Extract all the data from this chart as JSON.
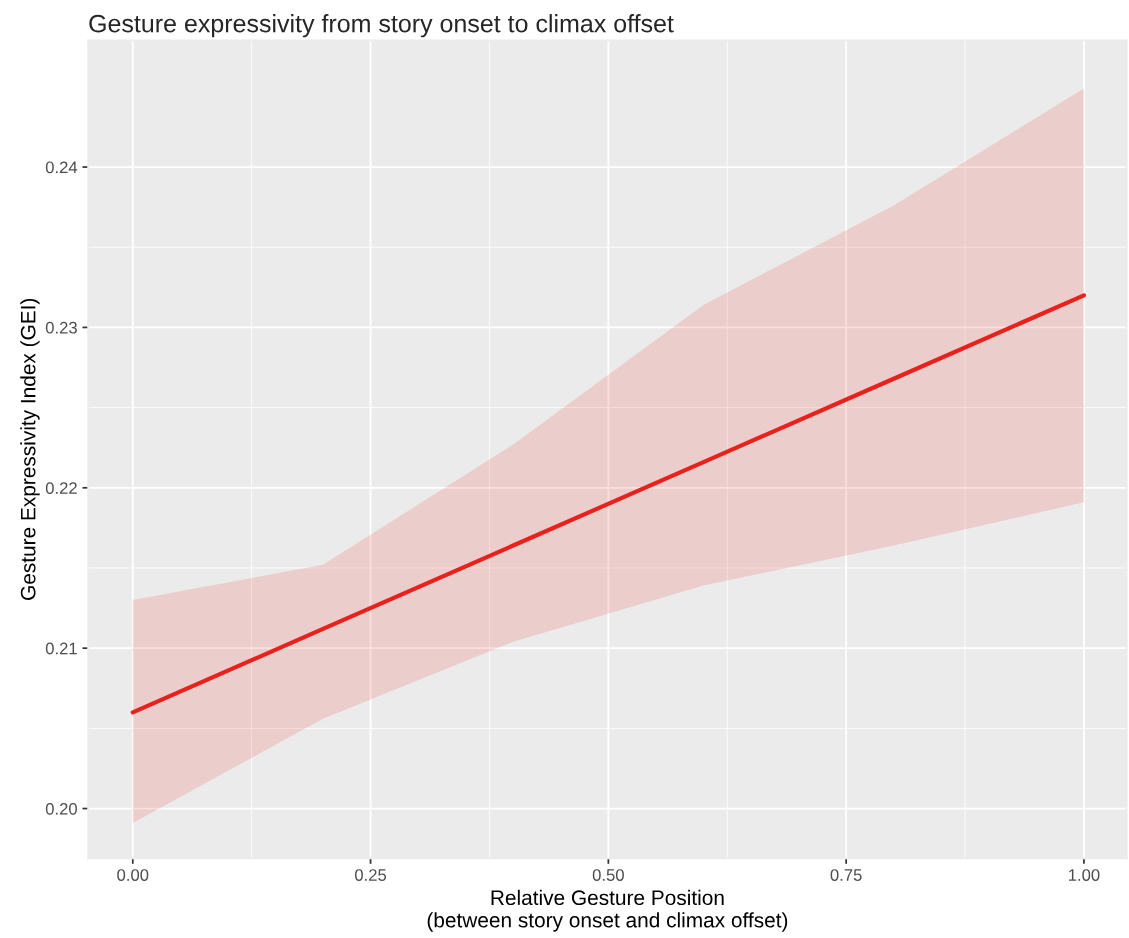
{
  "chart_data": {
    "type": "line",
    "title": "Gesture expressivity from story onset to climax offset",
    "xlabel": "Relative Gesture Position\n(between story onset and climax offset)",
    "ylabel": "Gesture Expressivity Index (GEI)",
    "x": [
      0,
      0.2,
      0.4,
      0.6,
      0.8,
      1.0
    ],
    "series": [
      {
        "color": "#e8211d",
        "values": [
          0.206,
          0.2112,
          0.2164,
          0.2216,
          0.2268,
          0.232
        ],
        "lower": [
          0.1991,
          0.2056,
          0.2104,
          0.2139,
          0.2164,
          0.2191
        ],
        "upper": [
          0.213,
          0.2152,
          0.2227,
          0.2314,
          0.2376,
          0.2449
        ]
      }
    ],
    "xlim": [
      -0.047,
      1.045
    ],
    "ylim": [
      0.1969,
      0.2479
    ],
    "xticks": [
      {
        "value": 0,
        "label": "0.00"
      },
      {
        "value": 0.25,
        "label": "0.25"
      },
      {
        "value": 0.5,
        "label": "0.50"
      },
      {
        "value": 0.75,
        "label": "0.75"
      },
      {
        "value": 1.0,
        "label": "1.00"
      }
    ],
    "yticks": [
      {
        "value": 0.2,
        "label": "0.20"
      },
      {
        "value": 0.21,
        "label": "0.21"
      },
      {
        "value": 0.22,
        "label": "0.22"
      },
      {
        "value": 0.23,
        "label": "0.23"
      },
      {
        "value": 0.24,
        "label": "0.24"
      }
    ],
    "grid": true,
    "legend": false,
    "marker": "none",
    "line_style": "solid"
  }
}
